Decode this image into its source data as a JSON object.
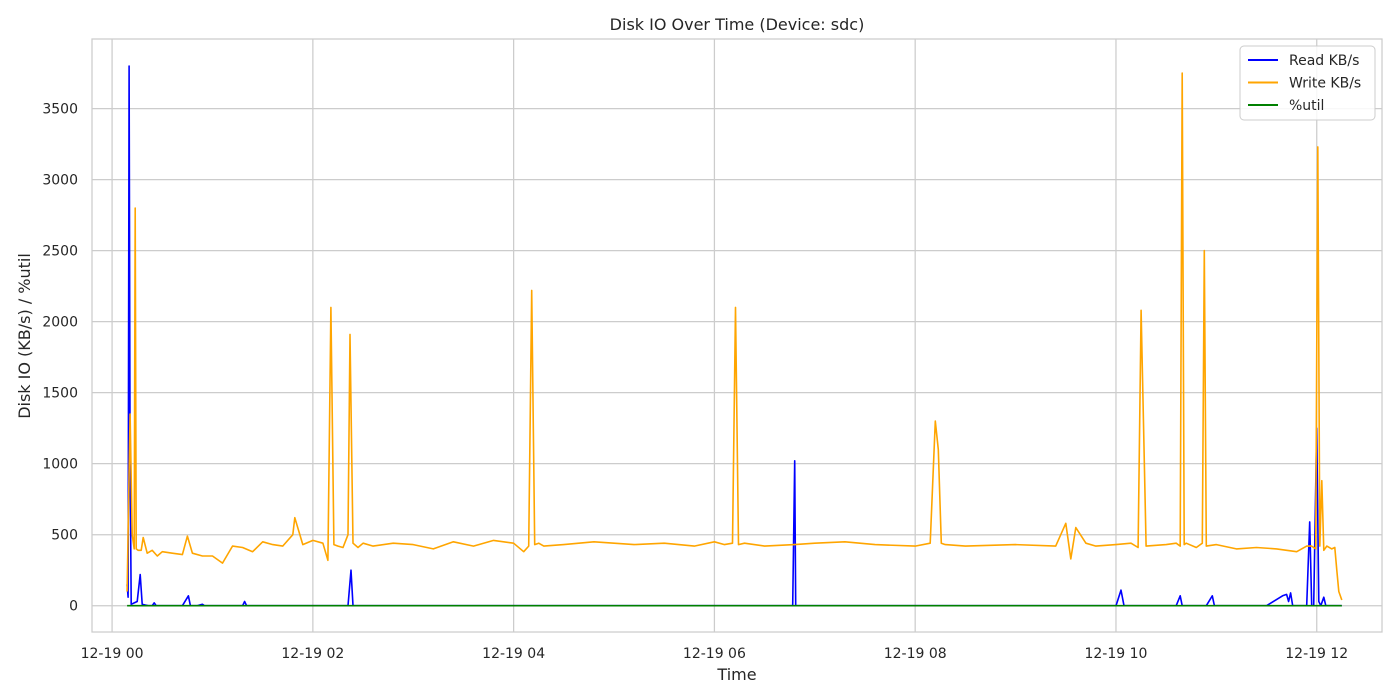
{
  "chart_data": {
    "type": "line",
    "title": "Disk IO Over Time (Device: sdc)",
    "xlabel": "Time",
    "ylabel": "Disk IO (KB/s) / %util",
    "x_axis": {
      "unit": "hours after 12-19 00:00",
      "range": [
        -0.2,
        12.65
      ],
      "ticks": [
        0,
        2,
        4,
        6,
        8,
        10,
        12
      ],
      "tick_labels": [
        "12-19 00",
        "12-19 02",
        "12-19 04",
        "12-19 06",
        "12-19 08",
        "12-19 10",
        "12-19 12"
      ]
    },
    "y_axis": {
      "range": [
        -185,
        3990
      ],
      "ticks": [
        0,
        500,
        1000,
        1500,
        2000,
        2500,
        3000,
        3500
      ],
      "tick_labels": [
        "0",
        "500",
        "1000",
        "1500",
        "2000",
        "2500",
        "3000",
        "3500"
      ]
    },
    "grid": true,
    "legend_position": "top-right",
    "series": [
      {
        "name": "Read KB/s",
        "color": "#0000ff",
        "x": [
          0.15,
          0.16,
          0.17,
          0.18,
          0.19,
          0.22,
          0.25,
          0.28,
          0.3,
          0.33,
          0.36,
          0.4,
          0.42,
          0.44,
          0.5,
          0.6,
          0.7,
          0.76,
          0.78,
          0.8,
          0.85,
          0.9,
          0.92,
          0.95,
          1.0,
          1.1,
          1.2,
          1.3,
          1.32,
          1.34,
          1.4,
          2.0,
          2.2,
          2.35,
          2.38,
          2.4,
          2.45,
          3.0,
          4.0,
          5.0,
          6.0,
          6.5,
          6.78,
          6.8,
          6.81,
          6.83,
          7.0,
          8.0,
          9.0,
          9.5,
          10.0,
          10.05,
          10.08,
          10.1,
          10.6,
          10.64,
          10.66,
          10.68,
          10.9,
          10.96,
          10.98,
          11.0,
          11.5,
          11.66,
          11.7,
          11.72,
          11.74,
          11.76,
          11.8,
          11.9,
          11.93,
          11.95,
          11.97,
          12.0,
          12.02,
          12.04,
          12.07,
          12.09,
          12.11,
          12.15,
          12.2,
          12.25
        ],
        "y": [
          150,
          60,
          3800,
          1000,
          10,
          20,
          30,
          220,
          10,
          5,
          0,
          0,
          20,
          0,
          0,
          0,
          0,
          70,
          0,
          0,
          0,
          10,
          0,
          0,
          0,
          0,
          0,
          0,
          30,
          0,
          0,
          0,
          0,
          0,
          250,
          0,
          0,
          0,
          0,
          0,
          0,
          0,
          0,
          1020,
          0,
          0,
          0,
          0,
          0,
          0,
          0,
          110,
          0,
          0,
          0,
          70,
          0,
          0,
          0,
          70,
          0,
          0,
          0,
          70,
          80,
          30,
          90,
          0,
          0,
          0,
          590,
          0,
          0,
          1250,
          30,
          0,
          60,
          0,
          0,
          0,
          0,
          0
        ]
      },
      {
        "name": "Write KB/s",
        "color": "#ffa500",
        "x": [
          0.15,
          0.18,
          0.2,
          0.22,
          0.23,
          0.24,
          0.26,
          0.29,
          0.31,
          0.35,
          0.4,
          0.45,
          0.5,
          0.6,
          0.7,
          0.75,
          0.8,
          0.9,
          1.0,
          1.1,
          1.2,
          1.3,
          1.4,
          1.5,
          1.6,
          1.7,
          1.8,
          1.82,
          1.9,
          2.0,
          2.1,
          2.15,
          2.18,
          2.21,
          2.25,
          2.3,
          2.35,
          2.37,
          2.4,
          2.45,
          2.5,
          2.6,
          2.8,
          3.0,
          3.2,
          3.4,
          3.6,
          3.8,
          4.0,
          4.1,
          4.15,
          4.18,
          4.21,
          4.25,
          4.3,
          4.5,
          4.8,
          5.0,
          5.2,
          5.5,
          5.8,
          6.0,
          6.1,
          6.18,
          6.21,
          6.24,
          6.3,
          6.5,
          6.8,
          7.0,
          7.3,
          7.6,
          8.0,
          8.15,
          8.2,
          8.23,
          8.26,
          8.3,
          8.5,
          9.0,
          9.4,
          9.5,
          9.55,
          9.6,
          9.7,
          9.8,
          10.0,
          10.15,
          10.22,
          10.25,
          10.3,
          10.5,
          10.6,
          10.64,
          10.66,
          10.68,
          10.7,
          10.8,
          10.84,
          10.86,
          10.88,
          10.9,
          11.0,
          11.2,
          11.4,
          11.6,
          11.8,
          11.9,
          11.95,
          11.99,
          12.01,
          12.03,
          12.05,
          12.07,
          12.1,
          12.15,
          12.18,
          12.2,
          12.22,
          12.25
        ],
        "y": [
          100,
          1350,
          500,
          400,
          2800,
          400,
          390,
          390,
          480,
          370,
          390,
          350,
          380,
          370,
          360,
          490,
          370,
          350,
          350,
          300,
          420,
          410,
          380,
          450,
          430,
          420,
          500,
          620,
          430,
          460,
          440,
          320,
          2100,
          430,
          420,
          410,
          500,
          1910,
          440,
          410,
          440,
          420,
          440,
          430,
          400,
          450,
          420,
          460,
          440,
          380,
          420,
          2220,
          430,
          440,
          420,
          430,
          450,
          440,
          430,
          440,
          420,
          450,
          430,
          440,
          2100,
          430,
          440,
          420,
          430,
          440,
          450,
          430,
          420,
          440,
          1300,
          1100,
          440,
          430,
          420,
          430,
          420,
          580,
          330,
          550,
          440,
          420,
          430,
          440,
          410,
          2080,
          420,
          430,
          440,
          420,
          3750,
          430,
          440,
          410,
          430,
          440,
          2500,
          420,
          430,
          400,
          410,
          400,
          380,
          420,
          420,
          400,
          3230,
          420,
          880,
          390,
          420,
          400,
          410,
          250,
          100,
          40
        ]
      },
      {
        "name": "%util",
        "color": "#008000",
        "x": [
          0.15,
          1.0,
          2.0,
          3.0,
          4.0,
          5.0,
          6.0,
          7.0,
          8.0,
          9.0,
          10.0,
          11.0,
          12.0,
          12.25
        ],
        "y": [
          0,
          0,
          0,
          0,
          0,
          0,
          0,
          0,
          0,
          0,
          0,
          0,
          0,
          0
        ]
      }
    ]
  }
}
